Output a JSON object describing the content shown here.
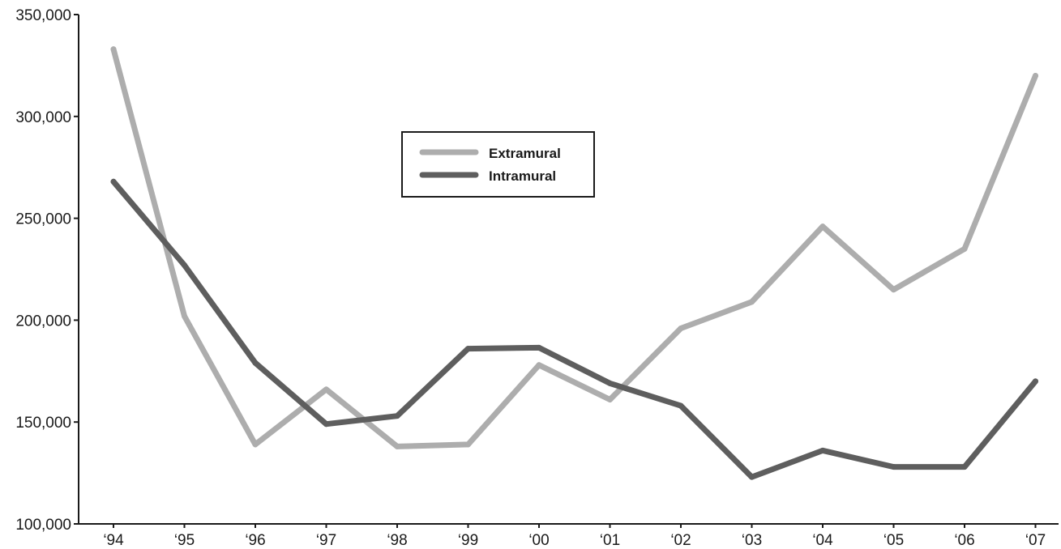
{
  "chart_data": {
    "type": "line",
    "categories": [
      "‘94",
      "‘95",
      "‘96",
      "‘97",
      "‘98",
      "‘99",
      "‘00",
      "‘01",
      "‘02",
      "‘03",
      "‘04",
      "‘05",
      "‘06",
      "‘07"
    ],
    "series": [
      {
        "name": "Extramural",
        "color": "#adadad",
        "values": [
          333000,
          202000,
          139000,
          166000,
          138000,
          139000,
          178000,
          161000,
          196000,
          209000,
          246000,
          215000,
          235000,
          320000
        ]
      },
      {
        "name": "Intramural",
        "color": "#5e5e5e",
        "values": [
          268000,
          227000,
          179000,
          149000,
          153000,
          186000,
          186500,
          169000,
          158000,
          123000,
          136000,
          128000,
          128000,
          170000
        ]
      }
    ],
    "ylim": [
      100000,
      350000
    ],
    "yticks": [
      100000,
      150000,
      200000,
      250000,
      300000,
      350000
    ],
    "ytick_labels": [
      "100,000",
      "150,000",
      "200,000",
      "250,000",
      "300,000",
      "350,000"
    ],
    "title": "",
    "xlabel": "",
    "ylabel": "",
    "grid": false,
    "legend_position": "upper-center"
  }
}
